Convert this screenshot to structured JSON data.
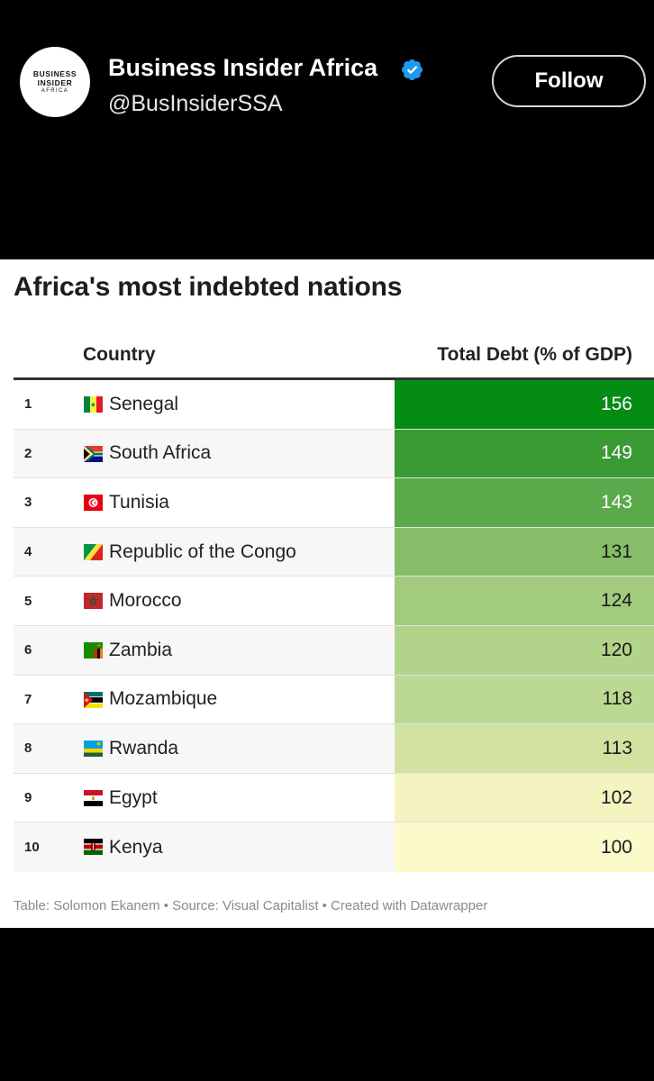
{
  "post": {
    "avatar_line1": "BUSINESS",
    "avatar_line2": "INSIDER",
    "avatar_line3": "AFRICA",
    "author_name": "Business Insider Africa",
    "handle": "@BusInsiderSSA",
    "follow_label": "Follow",
    "verified_color": "#1d9bf0"
  },
  "table": {
    "title": "Africa's most indebted nations",
    "col_country": "Country",
    "col_debt": "Total Debt (% of GDP)",
    "footer": "Table: Solomon Ekanem • Source: Visual Capitalist • Created with Datawrapper",
    "rows": [
      {
        "rank": "1",
        "country": "Senegal",
        "flag": "senegal-flag",
        "value": "156",
        "bg": "#058c14",
        "text_color": "#ffffff"
      },
      {
        "rank": "2",
        "country": "South Africa",
        "flag": "south-africa-flag",
        "value": "149",
        "bg": "#3a9b34",
        "text_color": "#ffffff"
      },
      {
        "rank": "3",
        "country": "Tunisia",
        "flag": "tunisia-flag",
        "value": "143",
        "bg": "#5aaa4b",
        "text_color": "#ffffff"
      },
      {
        "rank": "4",
        "country": "Republic of the Congo",
        "flag": "congo-flag",
        "value": "131",
        "bg": "#86bd69",
        "text_color": "#1a1a1a"
      },
      {
        "rank": "5",
        "country": "Morocco",
        "flag": "morocco-flag",
        "value": "124",
        "bg": "#a2cb7e",
        "text_color": "#1a1a1a"
      },
      {
        "rank": "6",
        "country": "Zambia",
        "flag": "zambia-flag",
        "value": "120",
        "bg": "#b1d38a",
        "text_color": "#1a1a1a"
      },
      {
        "rank": "7",
        "country": "Mozambique",
        "flag": "mozambique-flag",
        "value": "118",
        "bg": "#bcd993",
        "text_color": "#1a1a1a"
      },
      {
        "rank": "8",
        "country": "Rwanda",
        "flag": "rwanda-flag",
        "value": "113",
        "bg": "#d1e2a1",
        "text_color": "#1a1a1a"
      },
      {
        "rank": "9",
        "country": "Egypt",
        "flag": "egypt-flag",
        "value": "102",
        "bg": "#f4f4c1",
        "text_color": "#1a1a1a"
      },
      {
        "rank": "10",
        "country": "Kenya",
        "flag": "kenya-flag",
        "value": "100",
        "bg": "#fafacb",
        "text_color": "#1a1a1a"
      }
    ]
  }
}
